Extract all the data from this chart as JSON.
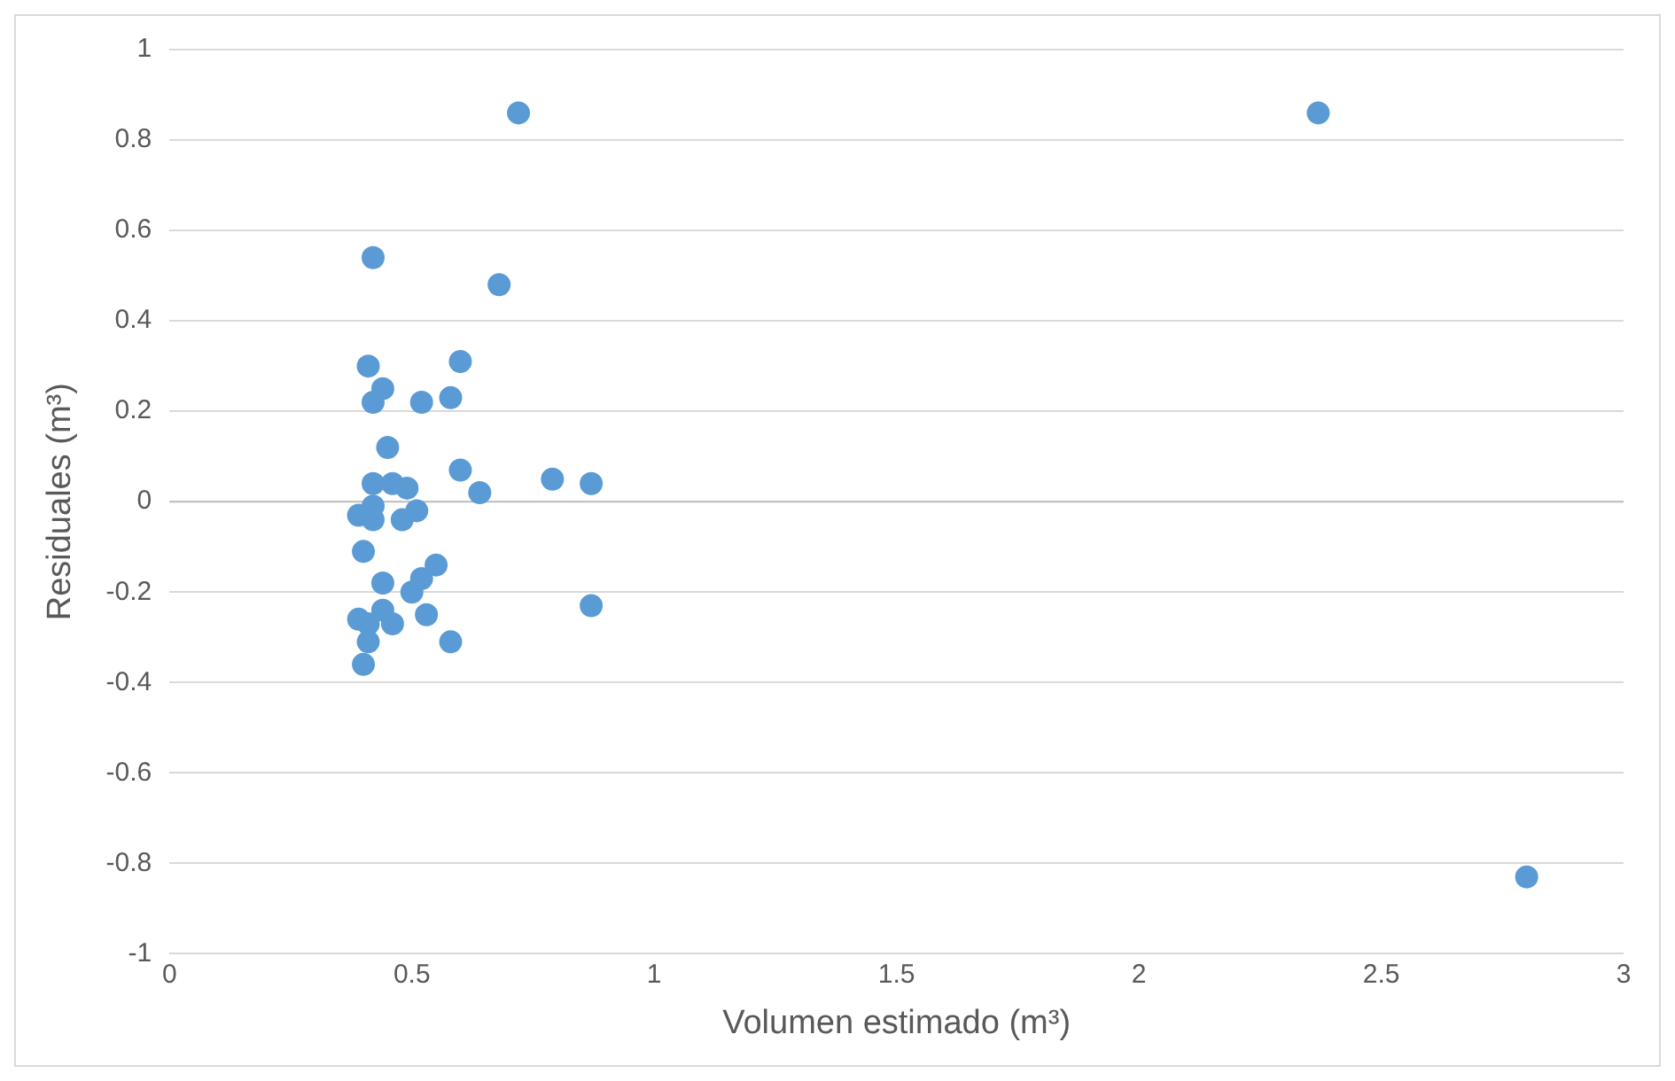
{
  "chart_data": {
    "type": "scatter",
    "xlabel": "Volumen estimado (m³)",
    "ylabel": "Residuales (m³)",
    "x": [
      0.72,
      2.37,
      2.8,
      0.42,
      0.68,
      0.41,
      0.6,
      0.44,
      0.42,
      0.52,
      0.58,
      0.45,
      0.42,
      0.46,
      0.49,
      0.6,
      0.79,
      0.87,
      0.64,
      0.39,
      0.42,
      0.42,
      0.48,
      0.51,
      0.4,
      0.44,
      0.55,
      0.52,
      0.5,
      0.44,
      0.39,
      0.41,
      0.46,
      0.53,
      0.41,
      0.58,
      0.4,
      0.87
    ],
    "values": [
      0.86,
      0.86,
      -0.83,
      0.54,
      0.48,
      0.3,
      0.31,
      0.25,
      0.22,
      0.22,
      0.23,
      0.12,
      0.04,
      0.04,
      0.03,
      0.07,
      0.05,
      0.04,
      0.02,
      -0.03,
      -0.01,
      -0.04,
      -0.04,
      -0.02,
      -0.11,
      -0.18,
      -0.14,
      -0.17,
      -0.2,
      -0.24,
      -0.26,
      -0.27,
      -0.27,
      -0.25,
      -0.31,
      -0.31,
      -0.36,
      -0.23
    ],
    "color": "#5b9bd5",
    "marker": "circle",
    "grid": "y",
    "xlim": [
      0,
      3
    ],
    "xticks": [
      0,
      0.5,
      1,
      1.5,
      2,
      2.5,
      3
    ],
    "ylim": [
      -1,
      1
    ],
    "yticks": [
      -1,
      -0.8,
      -0.6,
      -0.4,
      -0.2,
      0,
      0.2,
      0.4,
      0.6,
      0.8,
      1
    ],
    "legend": false
  }
}
